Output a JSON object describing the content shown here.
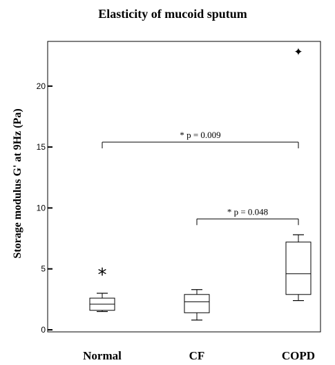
{
  "chart_data": {
    "type": "box",
    "title": "Elasticity of mucoid sputum",
    "ylabel": "Storage modulus G' at 9Hz (Pa)",
    "xlabel": "",
    "ylim": [
      0,
      24
    ],
    "yticks": [
      0,
      5,
      10,
      15,
      20
    ],
    "grid": false,
    "categories": [
      "Normal",
      "CF",
      "COPD"
    ],
    "boxes": [
      {
        "category": "Normal",
        "whisker_low": 1.5,
        "q1": 1.6,
        "median": 2.1,
        "q3": 2.6,
        "whisker_high": 3.0
      },
      {
        "category": "CF",
        "whisker_low": 0.8,
        "q1": 1.4,
        "median": 2.3,
        "q3": 2.9,
        "whisker_high": 3.3
      },
      {
        "category": "COPD",
        "whisker_low": 2.4,
        "q1": 2.9,
        "median": 4.6,
        "q3": 7.2,
        "whisker_high": 7.8
      }
    ],
    "outliers": [
      {
        "category": "Normal",
        "value": 4.7,
        "marker": "*"
      },
      {
        "category": "COPD",
        "value": 22.8,
        "marker": "✦"
      }
    ],
    "annotations": [
      {
        "from": "Normal",
        "to": "COPD",
        "text": "* p = 0.009",
        "y": 15.4
      },
      {
        "from": "CF",
        "to": "COPD",
        "text": "* p = 0.048",
        "y": 9.1
      }
    ]
  }
}
